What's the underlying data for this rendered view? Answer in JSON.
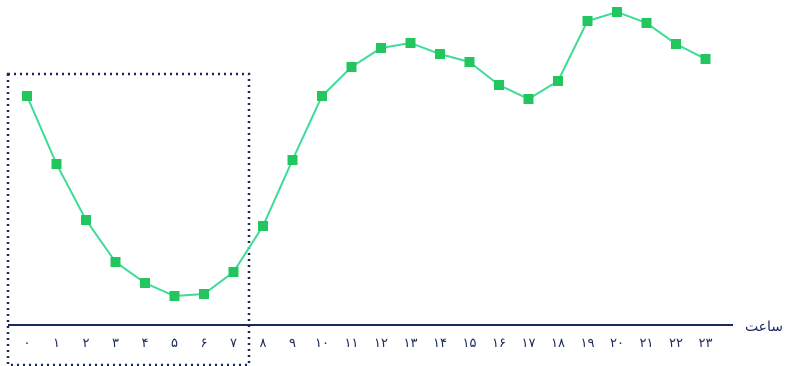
{
  "chart_data": {
    "type": "line",
    "xlabel": "ساعت",
    "ylabel": "",
    "x": [
      0,
      1,
      2,
      3,
      4,
      5,
      6,
      7,
      8,
      9,
      10,
      11,
      12,
      13,
      14,
      15,
      16,
      17,
      18,
      19,
      20,
      21,
      22,
      23
    ],
    "x_tick_labels": [
      "۰",
      "۱",
      "۲",
      "۳",
      "۴",
      "۵",
      "۶",
      "۷",
      "۸",
      "۹",
      "۱۰",
      "۱۱",
      "۱۲",
      "۱۳",
      "۱۴",
      "۱۵",
      "۱۶",
      "۱۷",
      "۱۸",
      "۱۹",
      "۲۰",
      "۲۱",
      "۲۲",
      "۲۳"
    ],
    "series": [
      {
        "values": [
          229,
          161,
          105,
          63,
          42,
          29,
          31,
          53,
          99,
          165,
          229,
          258,
          277,
          282,
          271,
          263,
          240,
          226,
          244,
          304,
          313,
          302,
          281,
          266
        ]
      }
    ],
    "ylim": [
      0,
      325
    ],
    "highlight_range": [
      0,
      7
    ],
    "grid": false,
    "colors": {
      "line": "#3ddc97",
      "marker": "#22c55e",
      "axis": "#1a2a5c",
      "highlight_border": "#1a2a5c"
    }
  }
}
